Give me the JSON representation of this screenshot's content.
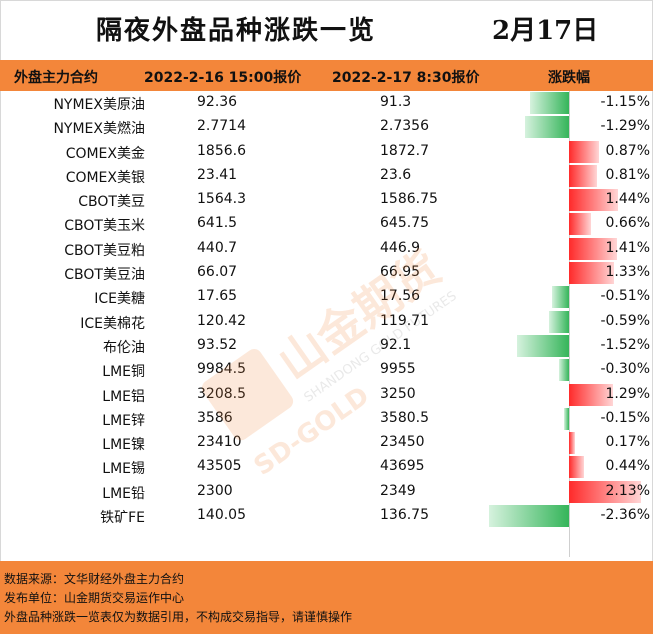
{
  "title": "隔夜外盘品种涨跌一览",
  "date": "2月17日",
  "columns": [
    "外盘主力合约",
    "2022-2-16 15:00报价",
    "2022-2-17 8:30报价",
    "涨跌幅"
  ],
  "rows": [
    {
      "name": "NYMEX美原油",
      "p1": "92.36",
      "p2": "91.3",
      "chg": "-1.15%",
      "pct": -1.15
    },
    {
      "name": "NYMEX美燃油",
      "p1": "2.7714",
      "p2": "2.7356",
      "chg": "-1.29%",
      "pct": -1.29
    },
    {
      "name": "COMEX美金",
      "p1": "1856.6",
      "p2": "1872.7",
      "chg": "0.87%",
      "pct": 0.87
    },
    {
      "name": "COMEX美银",
      "p1": "23.41",
      "p2": "23.6",
      "chg": "0.81%",
      "pct": 0.81
    },
    {
      "name": "CBOT美豆",
      "p1": "1564.3",
      "p2": "1586.75",
      "chg": "1.44%",
      "pct": 1.44
    },
    {
      "name": "CBOT美玉米",
      "p1": "641.5",
      "p2": "645.75",
      "chg": "0.66%",
      "pct": 0.66
    },
    {
      "name": "CBOT美豆粕",
      "p1": "440.7",
      "p2": "446.9",
      "chg": "1.41%",
      "pct": 1.41
    },
    {
      "name": "CBOT美豆油",
      "p1": "66.07",
      "p2": "66.95",
      "chg": "1.33%",
      "pct": 1.33
    },
    {
      "name": "ICE美糖",
      "p1": "17.65",
      "p2": "17.56",
      "chg": "-0.51%",
      "pct": -0.51
    },
    {
      "name": "ICE美棉花",
      "p1": "120.42",
      "p2": "119.71",
      "chg": "-0.59%",
      "pct": -0.59
    },
    {
      "name": "布伦油",
      "p1": "93.52",
      "p2": "92.1",
      "chg": "-1.52%",
      "pct": -1.52
    },
    {
      "name": "LME铜",
      "p1": "9984.5",
      "p2": "9955",
      "chg": "-0.30%",
      "pct": -0.3
    },
    {
      "name": "LME铝",
      "p1": "3208.5",
      "p2": "3250",
      "chg": "1.29%",
      "pct": 1.29
    },
    {
      "name": "LME锌",
      "p1": "3586",
      "p2": "3580.5",
      "chg": "-0.15%",
      "pct": -0.15
    },
    {
      "name": "LME镍",
      "p1": "23410",
      "p2": "23450",
      "chg": "0.17%",
      "pct": 0.17
    },
    {
      "name": "LME锡",
      "p1": "43505",
      "p2": "43695",
      "chg": "0.44%",
      "pct": 0.44
    },
    {
      "name": "LME铅",
      "p1": "2300",
      "p2": "2349",
      "chg": "2.13%",
      "pct": 2.13
    },
    {
      "name": "铁矿FE",
      "p1": "140.05",
      "p2": "136.75",
      "chg": "-2.36%",
      "pct": -2.36
    }
  ],
  "footer": {
    "source": "数据来源：文华财经外盘主力合约",
    "publisher": "发布单位：山金期货交易运作中心",
    "disclaimer": "外盘品种涨跌一览表仅为数据引用，不构成交易指导，请谨慎操作"
  },
  "watermark": {
    "brand_cn": "山金期货",
    "brand_en": "SHANDONG GOLD FUTURES",
    "logo_text": "SD-GOLD"
  },
  "colors": {
    "header": "#f3863a",
    "up": "#ff2a2a",
    "down": "#35b55a"
  }
}
